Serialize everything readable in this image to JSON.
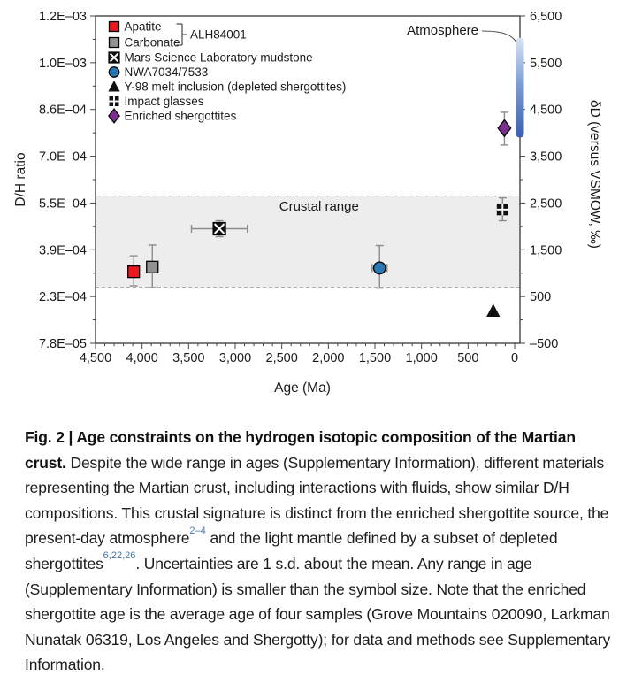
{
  "figure": {
    "caption": {
      "bold_lead": "Fig. 2 | Age constraints on the hydrogen isotopic composition of the Martian crust.",
      "part1": " Despite the wide range in ages (Supplementary Information), different materials representing the Martian crust, including interactions with fluids, show similar D/H compositions. This crustal signature is distinct from the enriched shergottite source, the present-day atmosphere",
      "cite1": "2–4",
      "part2": " and the light mantle defined by a subset of depleted shergottites",
      "cite2": "6,22,26",
      "part3": ". Uncertainties are 1 s.d. about the mean. Any range in age (Supplementary Information) is smaller than the symbol size. Note that the enriched shergottite age is the average age of four samples (Grove Mountains 020090, Larkman Nunatak 06319, Los Angeles and Shergotty); for data and methods see Supplementary Information.",
      "citation_color": "#4577a9"
    }
  },
  "chart_data": {
    "type": "scatter",
    "title": "",
    "xlabel": "Age (Ma)",
    "ylabel_left": "D/H ratio",
    "ylabel_right": "δD (versus VSMOW, ‰)",
    "x_axis": {
      "min": 4500,
      "max": 0,
      "reversed": true,
      "major_tick_step": 500,
      "minor_tick_step": 100,
      "tick_labels": [
        "4,500",
        "4,000",
        "3,500",
        "3,000",
        "2,500",
        "2,000",
        "1,500",
        "1,000",
        "500",
        "0"
      ]
    },
    "y_axis": {
      "min_dD": -500,
      "max_dD": 6500,
      "minor_tick_step": 500,
      "ticks": [
        {
          "dD": -500,
          "left": "7.8E–05",
          "right": "–500"
        },
        {
          "dD": 500,
          "left": "2.3E–04",
          "right": "500"
        },
        {
          "dD": 1500,
          "left": "3.9E–04",
          "right": "1,500"
        },
        {
          "dD": 2500,
          "left": "5.5E–04",
          "right": "2,500"
        },
        {
          "dD": 3500,
          "left": "7.0E–04",
          "right": "3,500"
        },
        {
          "dD": 4500,
          "left": "8.6E–04",
          "right": "4,500"
        },
        {
          "dD": 5500,
          "left": "1.0E–03",
          "right": "5,500"
        },
        {
          "dD": 6500,
          "left": "1.2E–03",
          "right": "6,500"
        }
      ]
    },
    "crustal_range": {
      "label": "Crustal range",
      "dD_min": 700,
      "dD_max": 2650,
      "label_age": 2100,
      "label_dD": 2430,
      "fill": "#ededed",
      "border": "#a3a3a3"
    },
    "atmosphere": {
      "label": "Atmosphere",
      "dD_min": 3900,
      "dD_max": 6030,
      "color_top": "#d9e4f5",
      "color_mid": "#7f9fd3",
      "color_bottom": "#3a5fad"
    },
    "series": [
      {
        "name": "Apatite",
        "group": "ALH84001",
        "marker": "square",
        "color": "#e8191f",
        "age": 4090,
        "dD": 1030,
        "dD_err_plus": 340,
        "dD_err_minus": 300
      },
      {
        "name": "Carbonate",
        "group": "ALH84001",
        "marker": "square",
        "color": "#919191",
        "age": 3890,
        "dD": 1130,
        "dD_err_plus": 470,
        "dD_err_minus": 440
      },
      {
        "name": "Mars Science Laboratory mudstone",
        "marker": "crossed-square",
        "color": "#111111",
        "age": 3170,
        "dD": 1950,
        "dD_err_plus": 170,
        "dD_err_minus": 170,
        "age_err": 300
      },
      {
        "name": "NWA7034/7533",
        "marker": "circle",
        "color": "#2878b5",
        "age": 1450,
        "dD": 1110,
        "dD_err_plus": 480,
        "dD_err_minus": 430,
        "age_err": 80
      },
      {
        "name": "Y-98 melt inclusion (depleted shergottites)",
        "marker": "triangle",
        "color": "#111111",
        "age": 230,
        "dD": 190
      },
      {
        "name": "Impact glasses",
        "marker": "quad-square",
        "color": "#111111",
        "age": 130,
        "dD": 2360,
        "dD_err_plus": 250,
        "dD_err_minus": 240
      },
      {
        "name": "Enriched shergottites",
        "marker": "diamond",
        "color": "#7b2d90",
        "age": 110,
        "dD": 4100,
        "dD_err_plus": 340,
        "dD_err_minus": 360
      }
    ],
    "legend": {
      "bracket_label": "ALH84001",
      "position": "top-left",
      "items": [
        "Apatite",
        "Carbonate",
        "Mars Science Laboratory mudstone",
        "NWA7034/7533",
        "Y-98 melt inclusion (depleted shergottites)",
        "Impact glasses",
        "Enriched shergottites"
      ]
    },
    "layout": {
      "grid": false,
      "frame": true,
      "axis_color": "#454545",
      "errorbar_color": "#8c8c8c"
    }
  }
}
